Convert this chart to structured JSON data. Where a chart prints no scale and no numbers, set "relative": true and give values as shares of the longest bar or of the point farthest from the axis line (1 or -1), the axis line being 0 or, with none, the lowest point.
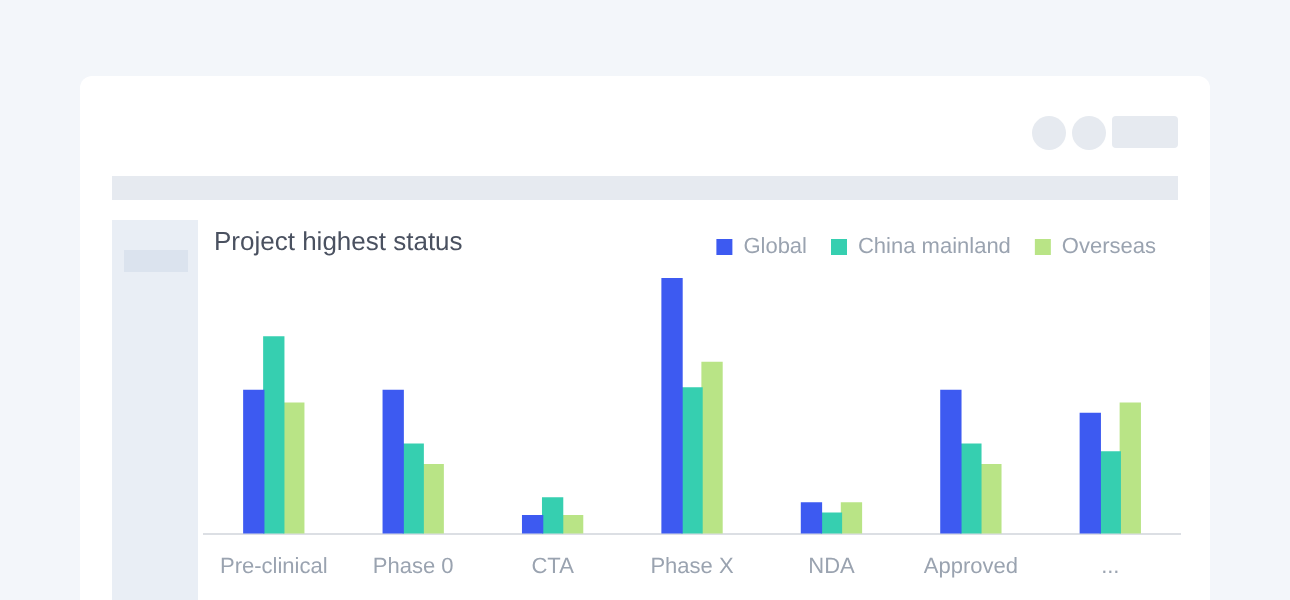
{
  "chart_data": {
    "type": "bar",
    "title": "Project highest status",
    "relative": true,
    "legend": "top right",
    "grid": false,
    "categories": [
      "Pre-clinical",
      "Phase 0",
      "CTA",
      "Phase X",
      "NDA",
      "Approved",
      "..."
    ],
    "series": [
      {
        "name": "Global",
        "color": "#3d5af1",
        "values": [
          0.56,
          0.56,
          0.07,
          1,
          0.12,
          0.56,
          0.47
        ]
      },
      {
        "name": "China mainland",
        "color": "#36cfb0",
        "values": [
          0.77,
          0.35,
          0.14,
          0.57,
          0.08,
          0.35,
          0.32
        ]
      },
      {
        "name": "Overseas",
        "color": "#b9e486",
        "values": [
          0.51,
          0.27,
          0.07,
          0.67,
          0.12,
          0.27,
          0.51
        ]
      }
    ]
  }
}
